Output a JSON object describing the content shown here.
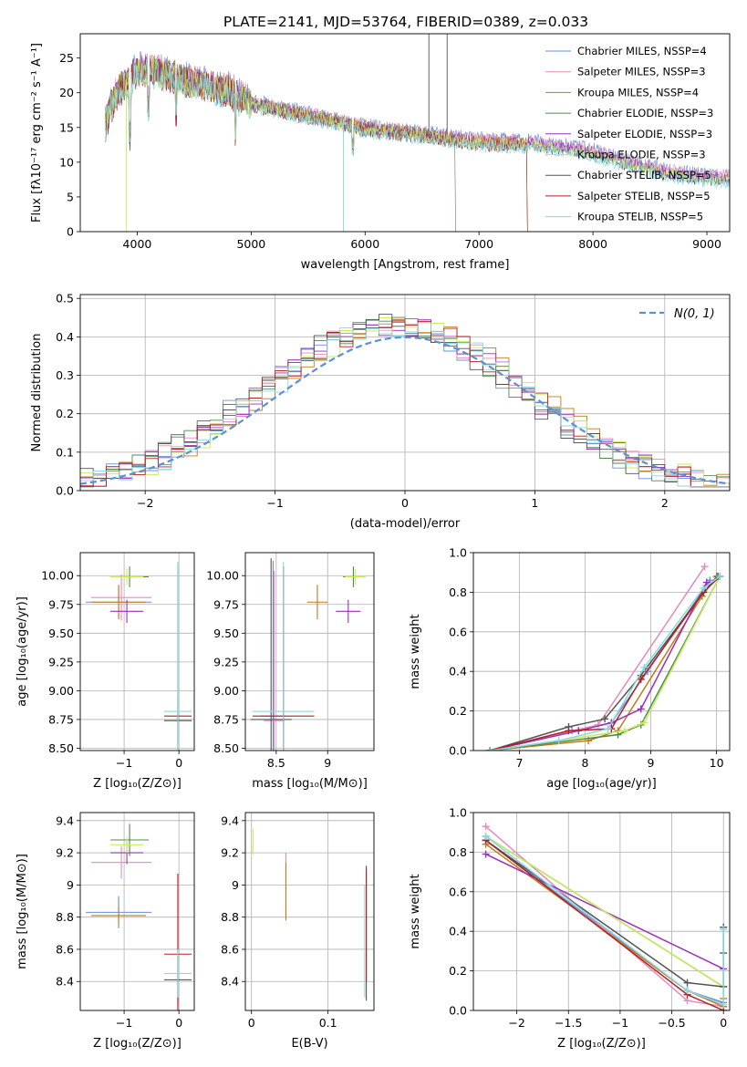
{
  "figure_title": "PLATE=2141, MJD=53764, FIBERID=0389, z=0.033",
  "series_colors": [
    "#6a8fd8",
    "#e58ac0",
    "#c07a18",
    "#4f8a4f",
    "#9b2fb8",
    "#c9ec5a",
    "#555555",
    "#b22222",
    "#86d8e2"
  ],
  "chart_data": [
    {
      "id": "spectrum",
      "type": "line",
      "xlabel": "wavelength [Angstrom, rest frame]",
      "ylabel": "Flux [fλ10⁻¹⁷ erg cm⁻² s⁻¹ A⁻¹]",
      "xlim": [
        3500,
        9200
      ],
      "ylim": [
        0,
        28.5
      ],
      "xticks": [
        4000,
        5000,
        6000,
        7000,
        8000,
        9000
      ],
      "yticks": [
        0,
        5,
        10,
        15,
        20,
        25
      ],
      "grid": false,
      "legend_position": "upper-right",
      "legend": [
        "Chabrier MILES, NSSP=4",
        "Salpeter MILES, NSSP=3",
        "Kroupa MILES, NSSP=4",
        "Chabrier ELODIE, NSSP=3",
        "Salpeter ELODIE, NSSP=3",
        "Kroupa ELODIE, NSSP=3",
        "Chabrier STELIB, NSSP=5",
        "Salpeter STELIB, NSSP=5",
        "Kroupa STELIB, NSSP=5"
      ],
      "continuum": [
        [
          3720,
          16
        ],
        [
          3800,
          20
        ],
        [
          3900,
          22
        ],
        [
          4000,
          24
        ],
        [
          4100,
          24
        ],
        [
          4300,
          23
        ],
        [
          4500,
          22
        ],
        [
          4800,
          21
        ],
        [
          5000,
          19
        ],
        [
          5300,
          18
        ],
        [
          5600,
          17
        ],
        [
          6000,
          15.5
        ],
        [
          6500,
          14.5
        ],
        [
          7000,
          13.5
        ],
        [
          7500,
          13.2
        ],
        [
          7800,
          12.5
        ],
        [
          8000,
          12
        ],
        [
          8300,
          10.5
        ],
        [
          8600,
          9.3
        ],
        [
          8900,
          8.5
        ],
        [
          9200,
          8.3
        ]
      ]
    },
    {
      "id": "residuals",
      "type": "line",
      "xlabel": "(data-model)/error",
      "ylabel": "Normed distribution",
      "xlim": [
        -2.5,
        2.5
      ],
      "ylim": [
        0,
        0.51
      ],
      "xticks": [
        -2,
        -1,
        0,
        1,
        2
      ],
      "yticks": [
        0.0,
        0.1,
        0.2,
        0.3,
        0.4,
        0.5
      ],
      "grid": true,
      "legend_position": "upper-right",
      "legend": [
        "N(0, 1)"
      ],
      "gaussian_mean": 0,
      "gaussian_sigma": 1
    },
    {
      "id": "age_vs_Z",
      "type": "scatter",
      "xlabel": "Z [log₁₀(Z/Z⊙)]",
      "ylabel": "age [log₁₀(age/yr)]",
      "xlim": [
        -1.8,
        0.28
      ],
      "ylim": [
        8.48,
        10.2
      ],
      "xticks": [
        -1,
        0
      ],
      "yticks": [
        8.5,
        8.75,
        9.0,
        9.25,
        9.5,
        9.75,
        10.0
      ],
      "ytick_labels": [
        "8.50",
        "8.75",
        "9.00",
        "9.25",
        "9.50",
        "9.75",
        "10.00"
      ],
      "grid": true,
      "points": [
        {
          "s": 0,
          "x": -1.1,
          "y": 9.77,
          "xe": 0.6,
          "ye": 0.14
        },
        {
          "s": 1,
          "x": -1.05,
          "y": 9.81,
          "xe": 0.55,
          "ye": 0.2
        },
        {
          "s": 2,
          "x": -1.1,
          "y": 9.77,
          "xe": 0.5,
          "ye": 0.15
        },
        {
          "s": 3,
          "x": -0.9,
          "y": 9.99,
          "xe": 0.35,
          "ye": 0.09
        },
        {
          "s": 4,
          "x": -0.95,
          "y": 9.69,
          "xe": 0.3,
          "ye": 0.1
        },
        {
          "s": 5,
          "x": -0.95,
          "y": 9.99,
          "xe": 0.3,
          "ye": 0.07
        },
        {
          "s": 6,
          "x": -0.02,
          "y": 8.74,
          "xe": 0.25,
          "ye": 0.2
        },
        {
          "s": 7,
          "x": -0.02,
          "y": 8.78,
          "xe": 0.25,
          "ye": 1.3
        },
        {
          "s": 8,
          "x": -0.02,
          "y": 8.82,
          "xe": 0.25,
          "ye": 1.3
        }
      ]
    },
    {
      "id": "age_vs_mass",
      "type": "scatter",
      "xlabel": "mass [log₁₀(M/M⊙)]",
      "ylabel": "",
      "xlim": [
        8.2,
        9.45
      ],
      "ylim": [
        8.48,
        10.2
      ],
      "xticks": [
        8.5,
        9.0
      ],
      "yticks": [
        8.5,
        8.75,
        9.0,
        9.25,
        9.5,
        9.75,
        10.0
      ],
      "ytick_labels": [
        "8.50",
        "8.75",
        "9.00",
        "9.25",
        "9.50",
        "9.75",
        "10.00"
      ],
      "grid": true,
      "points": [
        {
          "s": 0,
          "x": 8.47,
          "y": 8.78,
          "xe": 0.12,
          "ye": 1.35
        },
        {
          "s": 1,
          "x": 8.48,
          "y": 8.74,
          "xe": 0.1,
          "ye": 1.3
        },
        {
          "s": 2,
          "x": 8.9,
          "y": 9.77,
          "xe": 0.1,
          "ye": 0.15
        },
        {
          "s": 3,
          "x": 9.25,
          "y": 9.99,
          "xe": 0.1,
          "ye": 0.09
        },
        {
          "s": 4,
          "x": 9.2,
          "y": 9.69,
          "xe": 0.12,
          "ye": 0.1
        },
        {
          "s": 5,
          "x": 9.27,
          "y": 9.99,
          "xe": 0.1,
          "ye": 0.07
        },
        {
          "s": 6,
          "x": 8.45,
          "y": 8.75,
          "xe": 0.2,
          "ye": 1.4
        },
        {
          "s": 7,
          "x": 8.57,
          "y": 8.78,
          "xe": 0.3,
          "ye": 1.3
        },
        {
          "s": 8,
          "x": 8.57,
          "y": 8.82,
          "xe": 0.3,
          "ye": 1.3
        }
      ]
    },
    {
      "id": "massweight_vs_age",
      "type": "line",
      "xlabel": "age [log₁₀(age/yr)]",
      "ylabel": "mass weight",
      "xlim": [
        6.3,
        10.2
      ],
      "ylim": [
        0,
        1.0
      ],
      "xticks": [
        7,
        8,
        9,
        10
      ],
      "yticks": [
        0.0,
        0.2,
        0.4,
        0.6,
        0.8,
        1.0
      ],
      "grid": true,
      "series": [
        {
          "s": 0,
          "points": [
            [
              6.55,
              0.0
            ],
            [
              7.8,
              0.1
            ],
            [
              8.4,
              0.14
            ],
            [
              8.95,
              0.4
            ],
            [
              9.9,
              0.86
            ]
          ]
        },
        {
          "s": 1,
          "points": [
            [
              6.55,
              0.0
            ],
            [
              8.2,
              0.13
            ],
            [
              9.82,
              0.93
            ]
          ]
        },
        {
          "s": 2,
          "points": [
            [
              6.55,
              0.0
            ],
            [
              8.05,
              0.05
            ],
            [
              8.5,
              0.1
            ],
            [
              9.78,
              0.78
            ],
            [
              10.0,
              0.88
            ]
          ]
        },
        {
          "s": 3,
          "points": [
            [
              6.55,
              0.0
            ],
            [
              8.5,
              0.08
            ],
            [
              8.85,
              0.13
            ],
            [
              10.05,
              0.88
            ]
          ]
        },
        {
          "s": 4,
          "points": [
            [
              6.55,
              0.0
            ],
            [
              7.9,
              0.1
            ],
            [
              8.4,
              0.14
            ],
            [
              8.85,
              0.21
            ],
            [
              9.85,
              0.85
            ]
          ]
        },
        {
          "s": 5,
          "points": [
            [
              6.55,
              0.0
            ],
            [
              8.6,
              0.1
            ],
            [
              8.9,
              0.14
            ],
            [
              10.05,
              0.88
            ]
          ]
        },
        {
          "s": 6,
          "points": [
            [
              6.55,
              0.0
            ],
            [
              7.75,
              0.12
            ],
            [
              8.3,
              0.16
            ],
            [
              8.85,
              0.38
            ],
            [
              9.8,
              0.8
            ],
            [
              10.02,
              0.88
            ]
          ]
        },
        {
          "s": 7,
          "points": [
            [
              6.55,
              0.0
            ],
            [
              7.75,
              0.1
            ],
            [
              8.4,
              0.11
            ],
            [
              8.85,
              0.36
            ],
            [
              9.8,
              0.8
            ],
            [
              10.05,
              0.88
            ]
          ]
        },
        {
          "s": 8,
          "points": [
            [
              6.55,
              0.0
            ],
            [
              7.6,
              0.05
            ],
            [
              8.35,
              0.11
            ],
            [
              8.9,
              0.42
            ],
            [
              9.8,
              0.82
            ],
            [
              10.05,
              0.88
            ]
          ]
        }
      ]
    },
    {
      "id": "mass_vs_Z",
      "type": "scatter",
      "xlabel": "Z [log₁₀(Z/Z⊙)]",
      "ylabel": "mass [log₁₀(M/M⊙)]",
      "xlim": [
        -1.8,
        0.28
      ],
      "ylim": [
        8.22,
        9.45
      ],
      "xticks": [
        -1,
        0
      ],
      "yticks": [
        8.4,
        8.6,
        8.8,
        9.0,
        9.2,
        9.4
      ],
      "grid": true,
      "points": [
        {
          "s": 0,
          "x": -1.1,
          "y": 8.83,
          "xe": 0.6,
          "ye": 0.1
        },
        {
          "s": 1,
          "x": -1.05,
          "y": 9.14,
          "xe": 0.55,
          "ye": 0.1
        },
        {
          "s": 2,
          "x": -1.1,
          "y": 8.81,
          "xe": 0.5,
          "ye": 0.06
        },
        {
          "s": 3,
          "x": -0.9,
          "y": 9.28,
          "xe": 0.35,
          "ye": 0.1
        },
        {
          "s": 4,
          "x": -0.95,
          "y": 9.2,
          "xe": 0.3,
          "ye": 0.07
        },
        {
          "s": 5,
          "x": -0.95,
          "y": 9.25,
          "xe": 0.3,
          "ye": 0.05
        },
        {
          "s": 6,
          "x": -0.02,
          "y": 8.41,
          "xe": 0.25,
          "ye": 0.15
        },
        {
          "s": 7,
          "x": -0.02,
          "y": 8.57,
          "xe": 0.25,
          "ye": 0.5
        },
        {
          "s": 8,
          "x": -0.02,
          "y": 8.45,
          "xe": 0.25,
          "ye": 0.15
        }
      ]
    },
    {
      "id": "mass_vs_EBV",
      "type": "scatter",
      "xlabel": "E(B-V)",
      "ylabel": "",
      "xlim": [
        -0.008,
        0.16
      ],
      "ylim": [
        8.22,
        9.45
      ],
      "xticks": [
        0.0,
        0.1
      ],
      "yticks": [
        8.4,
        8.6,
        8.8,
        9.0,
        9.2,
        9.4
      ],
      "grid": true,
      "points": [
        {
          "s": 5,
          "x": 0.002,
          "y": 9.27,
          "ye": 0.08
        },
        {
          "s": 1,
          "x": 0.045,
          "y": 9.0,
          "ye": 0.2
        },
        {
          "s": 2,
          "x": 0.045,
          "y": 8.96,
          "ye": 0.18
        },
        {
          "s": 8,
          "x": 0.148,
          "y": 8.65,
          "ye": 0.35
        },
        {
          "s": 6,
          "x": 0.15,
          "y": 8.7,
          "ye": 0.42
        },
        {
          "s": 7,
          "x": 0.15,
          "y": 8.75,
          "ye": 0.35
        }
      ]
    },
    {
      "id": "massweight_vs_Z",
      "type": "line",
      "xlabel": "Z [log₁₀(Z/Z⊙)]",
      "ylabel": "mass weight",
      "xlim": [
        -2.42,
        0.06
      ],
      "ylim": [
        0,
        1.0
      ],
      "xticks": [
        -2.0,
        -1.5,
        -1.0,
        -0.5,
        0.0
      ],
      "grid": true,
      "yticks": [
        0.0,
        0.2,
        0.4,
        0.6,
        0.8,
        1.0
      ],
      "series": [
        {
          "s": 0,
          "points": [
            [
              -2.3,
              0.86
            ],
            [
              -0.35,
              0.1
            ],
            [
              0.0,
              0.04
            ],
            [
              0.0,
              0.42
            ]
          ]
        },
        {
          "s": 1,
          "points": [
            [
              -2.3,
              0.93
            ],
            [
              -0.35,
              0.05
            ],
            [
              0.0,
              0.02
            ]
          ]
        },
        {
          "s": 2,
          "points": [
            [
              -2.3,
              0.84
            ],
            [
              -0.35,
              0.1
            ],
            [
              0.0,
              0.02
            ],
            [
              0.0,
              0.06
            ]
          ]
        },
        {
          "s": 3,
          "points": [
            [
              -2.3,
              0.88
            ],
            [
              0.0,
              0.12
            ]
          ]
        },
        {
          "s": 4,
          "points": [
            [
              -2.3,
              0.79
            ],
            [
              0.0,
              0.21
            ]
          ]
        },
        {
          "s": 5,
          "points": [
            [
              -2.3,
              0.88
            ],
            [
              0.0,
              0.12
            ]
          ]
        },
        {
          "s": 6,
          "points": [
            [
              -2.3,
              0.86
            ],
            [
              -0.35,
              0.14
            ],
            [
              0.0,
              0.12
            ],
            [
              0.0,
              0.29
            ],
            [
              0.0,
              0.42
            ]
          ]
        },
        {
          "s": 7,
          "points": [
            [
              -2.3,
              0.86
            ],
            [
              -0.35,
              0.08
            ],
            [
              0.0,
              0.0
            ]
          ]
        },
        {
          "s": 8,
          "points": [
            [
              -2.3,
              0.88
            ],
            [
              -0.35,
              0.1
            ],
            [
              0.0,
              0.03
            ],
            [
              0.0,
              0.41
            ]
          ]
        }
      ]
    }
  ]
}
